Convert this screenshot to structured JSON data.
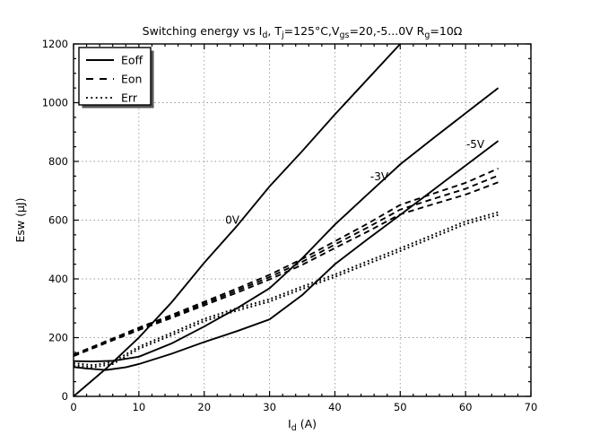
{
  "chart_data": {
    "type": "line",
    "title": "Switching energy vs Id, Tj=125°C,Vgs=20,-5...0V Rg=10Ω",
    "title_parts": [
      {
        "t": "Switching energy vs I"
      },
      {
        "t": "d",
        "sub": true
      },
      {
        "t": ", T"
      },
      {
        "t": "j",
        "sub": true
      },
      {
        "t": "=125°C,V"
      },
      {
        "t": "gs",
        "sub": true
      },
      {
        "t": "=20,-5...0V R"
      },
      {
        "t": "g",
        "sub": true
      },
      {
        "t": "=10Ω"
      }
    ],
    "xlabel": "Id (A)",
    "xlabel_parts": [
      {
        "t": "I"
      },
      {
        "t": "d",
        "sub": true
      },
      {
        "t": " (A)"
      }
    ],
    "ylabel": "Esw (µJ)",
    "xlim": [
      0,
      70
    ],
    "ylim": [
      0,
      1200
    ],
    "xticks": [
      0,
      10,
      20,
      30,
      40,
      50,
      60,
      70
    ],
    "yticks": [
      0,
      200,
      400,
      600,
      800,
      1000,
      1200
    ],
    "x_minor_step": 2,
    "y_minor_step": 50,
    "grid": true,
    "grid_style": "dotted",
    "legend": {
      "position": "upper-left",
      "items": [
        {
          "label": "Eoff",
          "style": "solid"
        },
        {
          "label": "Eon",
          "style": "dashed"
        },
        {
          "label": "Err",
          "style": "dotted"
        }
      ]
    },
    "annotations": [
      {
        "text": "0V",
        "x": 24.3,
        "y": 600
      },
      {
        "text": "-3V",
        "x": 46.8,
        "y": 748
      },
      {
        "text": "-5V",
        "x": 61.5,
        "y": 858
      }
    ],
    "series": [
      {
        "name": "Eoff 0V",
        "group": "Eoff",
        "gate": "0V",
        "style": "solid",
        "x": [
          0,
          5,
          10,
          15,
          20,
          25,
          30,
          35,
          40,
          45,
          50
        ],
        "y": [
          0,
          95,
          200,
          320,
          455,
          580,
          715,
          835,
          960,
          1080,
          1200
        ]
      },
      {
        "name": "Eoff -3V",
        "group": "Eoff",
        "gate": "-3V",
        "style": "solid",
        "x": [
          0,
          3,
          6,
          10,
          15,
          20,
          25,
          30,
          35,
          40,
          45,
          50,
          55,
          60,
          65
        ],
        "y": [
          120,
          119,
          121,
          135,
          180,
          238,
          300,
          368,
          470,
          585,
          688,
          790,
          878,
          964,
          1050
        ]
      },
      {
        "name": "Eoff -5V",
        "group": "Eoff",
        "gate": "-5V",
        "style": "solid",
        "x": [
          0,
          2,
          5,
          8,
          10,
          15,
          20,
          25,
          30,
          35,
          40,
          45,
          50,
          55,
          60,
          65
        ],
        "y": [
          100,
          95,
          90,
          99,
          110,
          145,
          185,
          222,
          262,
          345,
          450,
          535,
          618,
          702,
          786,
          870
        ]
      },
      {
        "name": "Eon upper",
        "group": "Eon",
        "style": "dashed",
        "x": [
          0,
          5,
          10,
          15,
          20,
          25,
          30,
          35,
          40,
          45,
          50,
          55,
          60,
          65
        ],
        "y": [
          142,
          188,
          234,
          277,
          322,
          367,
          414,
          468,
          528,
          588,
          652,
          690,
          727,
          776
        ]
      },
      {
        "name": "Eon middle",
        "group": "Eon",
        "style": "dashed",
        "x": [
          0,
          5,
          10,
          15,
          20,
          25,
          30,
          35,
          40,
          45,
          50,
          55,
          60,
          65
        ],
        "y": [
          140,
          185,
          230,
          272,
          316,
          360,
          406,
          458,
          517,
          575,
          636,
          672,
          707,
          752
        ]
      },
      {
        "name": "Eon lower",
        "group": "Eon",
        "style": "dashed",
        "x": [
          0,
          5,
          10,
          15,
          20,
          25,
          30,
          35,
          40,
          45,
          50,
          55,
          60,
          65
        ],
        "y": [
          137,
          182,
          226,
          267,
          310,
          353,
          398,
          448,
          505,
          561,
          620,
          654,
          687,
          729
        ]
      },
      {
        "name": "Err upper",
        "group": "Err",
        "style": "dotted",
        "x": [
          0,
          3,
          6,
          10,
          15,
          20,
          25,
          30,
          35,
          40,
          45,
          50,
          55,
          60,
          65
        ],
        "y": [
          113,
          106,
          117,
          169,
          216,
          264,
          300,
          331,
          374,
          415,
          460,
          504,
          550,
          596,
          627
        ]
      },
      {
        "name": "Err lower",
        "group": "Err",
        "style": "dotted",
        "x": [
          0,
          3,
          6,
          10,
          15,
          20,
          25,
          30,
          35,
          40,
          45,
          50,
          55,
          60,
          65
        ],
        "y": [
          106,
          99,
          110,
          162,
          208,
          256,
          292,
          323,
          366,
          407,
          451,
          495,
          541,
          587,
          618
        ]
      }
    ]
  },
  "colors": {
    "line": "#000000",
    "grid": "#999999",
    "background": "#ffffff",
    "legend_shadow": "#555555"
  }
}
